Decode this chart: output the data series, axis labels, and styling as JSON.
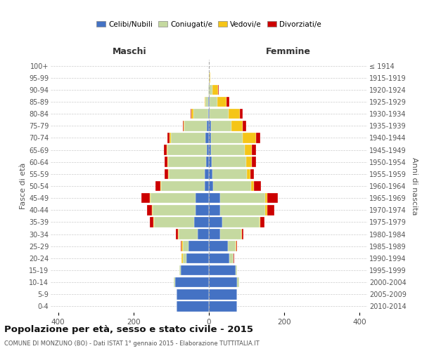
{
  "age_groups": [
    "0-4",
    "5-9",
    "10-14",
    "15-19",
    "20-24",
    "25-29",
    "30-34",
    "35-39",
    "40-44",
    "45-49",
    "50-54",
    "55-59",
    "60-64",
    "65-69",
    "70-74",
    "75-79",
    "80-84",
    "85-89",
    "90-94",
    "95-99",
    "100+"
  ],
  "birth_years": [
    "2010-2014",
    "2005-2009",
    "2000-2004",
    "1995-1999",
    "1990-1994",
    "1985-1989",
    "1980-1984",
    "1975-1979",
    "1970-1974",
    "1965-1969",
    "1960-1964",
    "1955-1959",
    "1950-1954",
    "1945-1949",
    "1940-1944",
    "1935-1939",
    "1930-1934",
    "1925-1929",
    "1920-1924",
    "1915-1919",
    "≤ 1914"
  ],
  "male": {
    "celibi": [
      85,
      85,
      90,
      75,
      60,
      55,
      30,
      40,
      35,
      35,
      12,
      12,
      8,
      5,
      10,
      5,
      2,
      2,
      0,
      0,
      0
    ],
    "coniugati": [
      0,
      0,
      4,
      4,
      10,
      15,
      50,
      105,
      115,
      120,
      115,
      95,
      100,
      105,
      90,
      60,
      40,
      8,
      2,
      0,
      0
    ],
    "vedovi": [
      0,
      0,
      0,
      0,
      2,
      2,
      2,
      2,
      2,
      2,
      2,
      2,
      2,
      2,
      5,
      2,
      4,
      2,
      0,
      0,
      0
    ],
    "divorziati": [
      0,
      0,
      0,
      0,
      0,
      2,
      5,
      10,
      12,
      22,
      12,
      8,
      8,
      8,
      5,
      2,
      2,
      0,
      0,
      0,
      0
    ]
  },
  "female": {
    "nubili": [
      75,
      75,
      75,
      70,
      55,
      50,
      30,
      35,
      30,
      30,
      12,
      10,
      8,
      5,
      5,
      5,
      2,
      2,
      0,
      0,
      0
    ],
    "coniugate": [
      0,
      0,
      5,
      5,
      10,
      20,
      55,
      100,
      120,
      120,
      100,
      90,
      90,
      90,
      85,
      55,
      50,
      20,
      10,
      2,
      0
    ],
    "vedove": [
      0,
      0,
      0,
      0,
      0,
      2,
      2,
      2,
      5,
      5,
      8,
      10,
      15,
      18,
      35,
      30,
      30,
      25,
      15,
      2,
      0
    ],
    "divorziate": [
      0,
      0,
      0,
      0,
      2,
      2,
      5,
      10,
      18,
      28,
      18,
      10,
      12,
      12,
      12,
      8,
      8,
      8,
      2,
      0,
      0
    ]
  },
  "colors": {
    "celibi_nubili": "#4472c4",
    "coniugati": "#c5d9a0",
    "vedovi": "#f5c518",
    "divorziati": "#cc0000"
  },
  "xlim": 420,
  "title": "Popolazione per età, sesso e stato civile - 2015",
  "subtitle": "COMUNE DI MONZUNO (BO) - Dati ISTAT 1° gennaio 2015 - Elaborazione TUTTITALIA.IT",
  "xlabel_left": "Maschi",
  "xlabel_right": "Femmine",
  "ylabel": "Fasce di età",
  "ylabel_right": "Anni di nascita",
  "bg_color": "#ffffff",
  "grid_color": "#cccccc"
}
